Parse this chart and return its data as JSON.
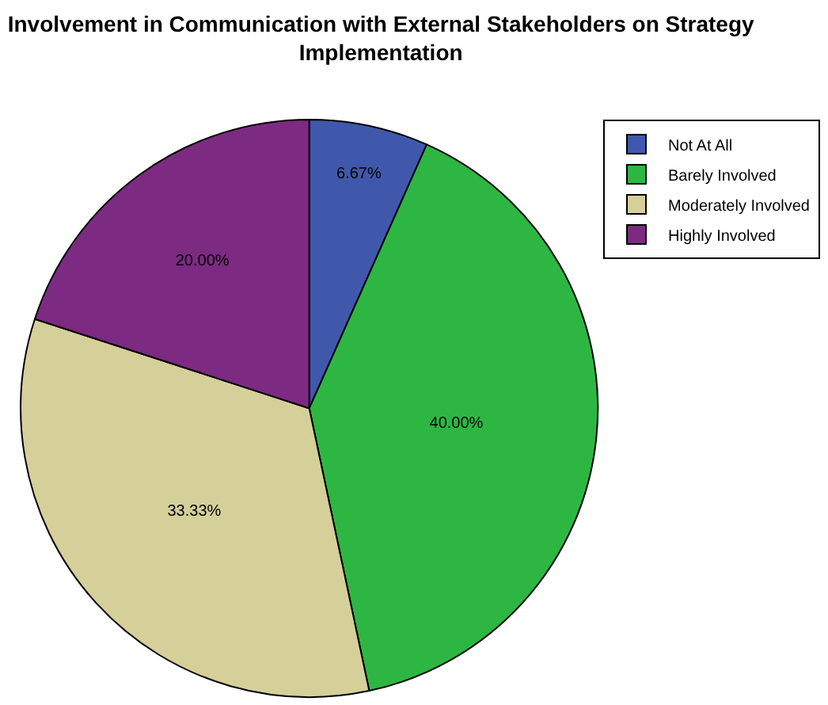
{
  "chart_data": {
    "type": "pie",
    "title": "Involvement in Communication with External Stakeholders on Strategy Implementation",
    "categories": [
      "Not At All",
      "Barely Involved",
      "Moderately Involved",
      "Highly Involved"
    ],
    "values": [
      6.67,
      40.0,
      33.33,
      20.0
    ],
    "value_labels": [
      "6.67%",
      "40.00%",
      "33.33%",
      "20.00%"
    ],
    "colors": [
      "#3f58ab",
      "#2db742",
      "#d5cf9a",
      "#7c2a82"
    ],
    "legend": "top right"
  }
}
